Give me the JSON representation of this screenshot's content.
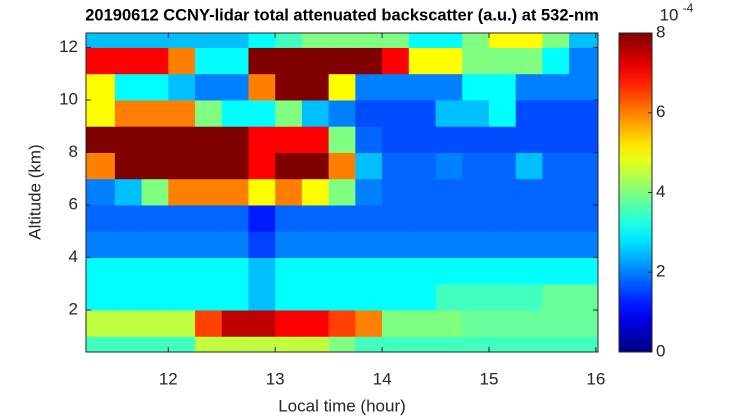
{
  "chart_data": {
    "type": "heatmap",
    "title": "20190612 CCNY-lidar total attenuated backscatter (a.u.) at 532-nm",
    "x_label": "Local time (hour)",
    "y_label": "Altitude (km)",
    "xlim": [
      11.23,
      16.02
    ],
    "ylim": [
      0.4,
      12.55
    ],
    "xticks": [
      12,
      13,
      14,
      15,
      16
    ],
    "yticks": [
      2,
      4,
      6,
      8,
      10,
      12
    ],
    "xbins": [
      11.23,
      11.5,
      11.75,
      12,
      12.25,
      12.5,
      12.75,
      13,
      13.25,
      13.5,
      13.75,
      14,
      14.25,
      14.5,
      14.75,
      15,
      15.25,
      15.5,
      15.75,
      16.02
    ],
    "ybins": [
      0.4,
      1,
      2,
      3,
      4,
      5,
      6,
      7,
      8,
      9,
      10,
      11,
      12,
      12.55
    ],
    "z": [
      [
        3.5,
        3.5,
        3.5,
        3.5,
        4.5,
        4.5,
        4.5,
        4.5,
        4.5,
        4,
        3.5,
        3.5,
        3.5,
        3.5,
        3.5,
        3.5,
        3.5,
        3.5,
        3.5
      ],
      [
        4.5,
        4.5,
        4.5,
        4.5,
        6.5,
        7.5,
        7.5,
        7,
        7,
        6.5,
        6,
        4,
        4,
        4,
        3.8,
        3.8,
        3.8,
        3.8,
        3.8
      ],
      [
        3,
        3,
        3,
        3,
        3,
        3,
        2.5,
        3,
        3,
        3,
        3,
        3,
        3,
        3.5,
        3.5,
        3.5,
        3.5,
        3.8,
        3.8
      ],
      [
        3,
        3,
        3,
        3,
        3,
        3,
        2.5,
        3,
        3,
        3,
        3,
        3,
        3,
        3,
        3,
        3,
        3,
        3,
        3
      ],
      [
        2,
        2,
        2,
        2,
        2,
        2,
        1.5,
        2,
        2,
        2,
        2,
        2,
        2,
        2,
        2,
        2,
        2,
        2,
        2
      ],
      [
        1.8,
        1.8,
        1.8,
        1.8,
        1.8,
        1.8,
        1.2,
        1.8,
        1.8,
        1.8,
        1.8,
        1.8,
        1.8,
        1.8,
        1.8,
        1.8,
        1.8,
        1.8,
        1.8
      ],
      [
        2,
        2.5,
        4,
        6,
        6,
        6,
        5,
        6,
        5,
        4,
        2,
        1.8,
        1.8,
        1.8,
        1.8,
        1.8,
        1.8,
        1.8,
        1.8
      ],
      [
        6,
        8,
        8,
        8,
        8,
        8,
        7,
        8,
        8,
        6,
        2.5,
        1.8,
        1.8,
        2,
        1.8,
        1.8,
        2.5,
        1.8,
        1.8
      ],
      [
        8,
        8,
        8,
        8,
        8,
        8,
        7,
        7,
        7,
        4,
        1.8,
        1.6,
        1.6,
        1.6,
        1.6,
        1.6,
        1.6,
        1.6,
        1.6
      ],
      [
        5,
        6,
        6,
        6,
        4,
        3,
        3,
        4,
        2.5,
        2,
        1.6,
        1.6,
        1.6,
        2.5,
        2.5,
        3,
        1.6,
        1.6,
        1.6
      ],
      [
        5,
        3,
        3,
        2.5,
        2,
        2,
        6,
        8,
        8,
        5,
        2,
        2,
        2,
        2,
        3,
        3,
        2,
        2,
        2
      ],
      [
        7,
        7,
        7,
        6,
        3,
        3,
        8,
        8,
        8,
        8,
        8,
        7,
        5,
        5,
        4,
        4,
        4,
        3,
        2
      ],
      [
        2.5,
        2.5,
        2.5,
        2.5,
        2.5,
        2.5,
        3,
        3.5,
        4,
        4,
        4,
        4,
        3,
        3,
        4,
        5,
        5,
        4,
        2.5
      ]
    ],
    "colormap": "jet",
    "clim": [
      0,
      8
    ],
    "cticks": [
      0,
      2,
      4,
      6,
      8
    ],
    "colorbar_scale_label": "10",
    "colorbar_scale_exponent": "-4"
  }
}
